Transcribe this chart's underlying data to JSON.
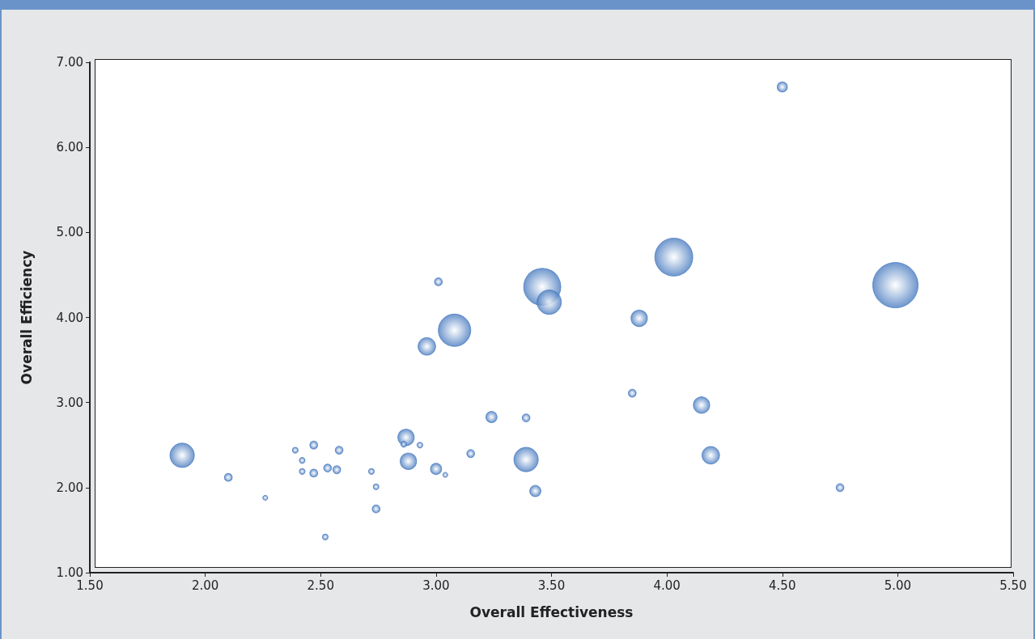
{
  "chart_data": {
    "type": "bubble",
    "xlabel": "Overall Effectiveness",
    "ylabel": "Overall Efficiency",
    "xlim": [
      1.5,
      5.5
    ],
    "ylim": [
      1,
      7
    ],
    "xticks": [
      {
        "value": 1.5,
        "label": "1.50"
      },
      {
        "value": 2,
        "label": "2.00"
      },
      {
        "value": 2.5,
        "label": "2.50"
      },
      {
        "value": 3,
        "label": "3.00"
      },
      {
        "value": 3.5,
        "label": "3.50"
      },
      {
        "value": 4,
        "label": "4.00"
      },
      {
        "value": 4.5,
        "label": "4.50"
      },
      {
        "value": 5,
        "label": "5.00"
      },
      {
        "value": 5.5,
        "label": "5.50"
      }
    ],
    "yticks": [
      {
        "value": 1,
        "label": "1.00"
      },
      {
        "value": 2,
        "label": "2.00"
      },
      {
        "value": 3,
        "label": "3.00"
      },
      {
        "value": 4,
        "label": "4.00"
      },
      {
        "value": 5,
        "label": "5.00"
      },
      {
        "value": 6,
        "label": "6.00"
      },
      {
        "value": 7,
        "label": "7.00"
      }
    ],
    "grid": false,
    "series": [
      {
        "color": "#4a7cc0",
        "x": [
          1.9,
          2.1,
          2.26,
          2.39,
          2.42,
          2.42,
          2.47,
          2.47,
          2.53,
          2.57,
          2.58,
          2.52,
          2.72,
          2.74,
          2.74,
          2.87,
          2.86,
          2.93,
          2.88,
          3.0,
          3.04,
          3.01,
          2.96,
          3.08,
          3.46,
          3.49,
          3.15,
          3.24,
          3.39,
          3.39,
          3.43,
          3.85,
          3.88,
          4.03,
          4.15,
          4.19,
          4.5,
          4.75,
          4.99
        ],
        "values": [
          2.38,
          2.12,
          1.88,
          2.44,
          2.32,
          2.19,
          2.5,
          2.17,
          2.23,
          2.21,
          2.44,
          1.42,
          2.19,
          2.01,
          1.75,
          2.59,
          2.51,
          2.5,
          2.31,
          2.22,
          2.15,
          4.42,
          3.66,
          3.85,
          4.36,
          4.18,
          2.4,
          2.83,
          2.82,
          2.33,
          1.96,
          3.11,
          3.99,
          4.71,
          2.97,
          2.38,
          6.71,
          2.0,
          4.38
        ],
        "sizes": [
          0.29,
          0.03,
          0.012,
          0.016,
          0.016,
          0.016,
          0.03,
          0.03,
          0.03,
          0.03,
          0.03,
          0.016,
          0.016,
          0.016,
          0.03,
          0.13,
          0.016,
          0.016,
          0.13,
          0.06,
          0.012,
          0.03,
          0.15,
          0.51,
          0.67,
          0.29,
          0.03,
          0.06,
          0.03,
          0.29,
          0.06,
          0.03,
          0.13,
          0.7,
          0.13,
          0.15,
          0.05,
          0.03,
          1
        ]
      }
    ]
  }
}
